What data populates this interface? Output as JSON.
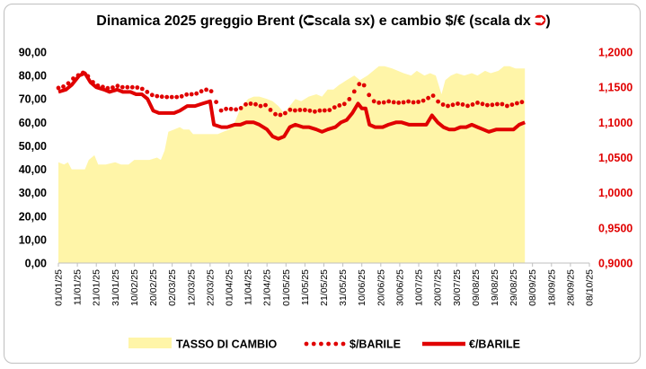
{
  "chart_data": {
    "type": "area+line",
    "title": "Dinamica 2025 greggio Brent (⮊scala sx) e cambio $/€ (scala dx ⮊)",
    "title_parts": {
      "before": "Dinamica 2025 greggio Brent (",
      "left_label": "scala sx) e cambio $/€ (scala dx ",
      "after": ")"
    },
    "colors": {
      "area": "#fff5a8",
      "line": "#e00000",
      "left_axis": "#000000",
      "right_axis": "#e00000"
    },
    "y_left": {
      "min": 0,
      "max": 90,
      "ticks": [
        "0,00",
        "10,00",
        "20,00",
        "30,00",
        "40,00",
        "50,00",
        "60,00",
        "70,00",
        "80,00",
        "90,00"
      ]
    },
    "y_right": {
      "min": 0.9,
      "max": 1.2,
      "ticks": [
        "0,9000",
        "0,9500",
        "1,0000",
        "1,0500",
        "1,1000",
        "1,1500",
        "1,2000"
      ]
    },
    "x_ticks": [
      "01/01/25",
      "11/01/25",
      "21/01/25",
      "31/01/25",
      "10/02/25",
      "20/02/25",
      "02/03/25",
      "12/03/25",
      "22/03/25",
      "01/04/25",
      "11/04/25",
      "21/04/25",
      "01/05/25",
      "11/05/25",
      "21/05/25",
      "31/05/25",
      "10/06/25",
      "20/06/25",
      "30/06/25",
      "10/07/25",
      "20/07/25",
      "30/07/25",
      "09/08/25",
      "19/08/25",
      "29/08/25",
      "08/09/25",
      "18/09/25",
      "28/09/25",
      "08/10/25"
    ],
    "series": [
      {
        "name": "TASSO DI CAMBIO",
        "kind": "area",
        "axis": "left",
        "points": [
          [
            0,
            43
          ],
          [
            3,
            42
          ],
          [
            5,
            43
          ],
          [
            7,
            40
          ],
          [
            10,
            40
          ],
          [
            14,
            40
          ],
          [
            16,
            44
          ],
          [
            19,
            46
          ],
          [
            21,
            42
          ],
          [
            25,
            42
          ],
          [
            30,
            43
          ],
          [
            33,
            42
          ],
          [
            37,
            42
          ],
          [
            40,
            44
          ],
          [
            44,
            44
          ],
          [
            48,
            44
          ],
          [
            52,
            45
          ],
          [
            54,
            44
          ],
          [
            56,
            48
          ],
          [
            58,
            56
          ],
          [
            61,
            57
          ],
          [
            64,
            58
          ],
          [
            66,
            57
          ],
          [
            69,
            57
          ],
          [
            71,
            55
          ],
          [
            74,
            55
          ],
          [
            78,
            55
          ],
          [
            81,
            55
          ],
          [
            84,
            55
          ],
          [
            87,
            56
          ],
          [
            90,
            57
          ],
          [
            93,
            60
          ],
          [
            96,
            66
          ],
          [
            98,
            68
          ],
          [
            100,
            70
          ],
          [
            103,
            71
          ],
          [
            106,
            71
          ],
          [
            110,
            70
          ],
          [
            113,
            69
          ],
          [
            116,
            67
          ],
          [
            119,
            64
          ],
          [
            122,
            67
          ],
          [
            125,
            70
          ],
          [
            128,
            69
          ],
          [
            132,
            71
          ],
          [
            136,
            72
          ],
          [
            139,
            71
          ],
          [
            142,
            74
          ],
          [
            145,
            74
          ],
          [
            148,
            76
          ],
          [
            152,
            78
          ],
          [
            156,
            80
          ],
          [
            159,
            78
          ],
          [
            163,
            80
          ],
          [
            166,
            82
          ],
          [
            169,
            84
          ],
          [
            172,
            84
          ],
          [
            176,
            83
          ],
          [
            179,
            82
          ],
          [
            182,
            81
          ],
          [
            186,
            80
          ],
          [
            189,
            82
          ],
          [
            193,
            80
          ],
          [
            196,
            81
          ],
          [
            199,
            80
          ],
          [
            202,
            72
          ],
          [
            204,
            78
          ],
          [
            207,
            80
          ],
          [
            210,
            81
          ],
          [
            214,
            80
          ],
          [
            218,
            81
          ],
          [
            221,
            80
          ],
          [
            225,
            82
          ],
          [
            228,
            81
          ],
          [
            232,
            82
          ],
          [
            235,
            84
          ],
          [
            238,
            84
          ],
          [
            241,
            83
          ],
          [
            244,
            83
          ],
          [
            246,
            83
          ]
        ]
      },
      {
        "name": "$/BARILE",
        "kind": "line-dotted",
        "axis": "right",
        "points": [
          [
            0,
            1.149
          ],
          [
            4,
            1.152
          ],
          [
            7,
            1.161
          ],
          [
            11,
            1.168
          ],
          [
            14,
            1.172
          ],
          [
            17,
            1.16
          ],
          [
            20,
            1.153
          ],
          [
            24,
            1.15
          ],
          [
            27,
            1.148
          ],
          [
            31,
            1.152
          ],
          [
            34,
            1.15
          ],
          [
            38,
            1.15
          ],
          [
            41,
            1.15
          ],
          [
            44,
            1.148
          ],
          [
            47,
            1.143
          ],
          [
            50,
            1.138
          ],
          [
            53,
            1.137
          ],
          [
            57,
            1.136
          ],
          [
            61,
            1.136
          ],
          [
            64,
            1.136
          ],
          [
            68,
            1.14
          ],
          [
            72,
            1.14
          ],
          [
            76,
            1.145
          ],
          [
            80,
            1.148
          ],
          [
            83,
            1.13
          ],
          [
            86,
            1.116
          ],
          [
            89,
            1.12
          ],
          [
            93,
            1.118
          ],
          [
            96,
            1.12
          ],
          [
            99,
            1.126
          ],
          [
            103,
            1.127
          ],
          [
            106,
            1.123
          ],
          [
            110,
            1.125
          ],
          [
            113,
            1.113
          ],
          [
            116,
            1.11
          ],
          [
            119,
            1.112
          ],
          [
            122,
            1.118
          ],
          [
            125,
            1.117
          ],
          [
            129,
            1.118
          ],
          [
            132,
            1.117
          ],
          [
            136,
            1.115
          ],
          [
            139,
            1.118
          ],
          [
            142,
            1.116
          ],
          [
            146,
            1.122
          ],
          [
            149,
            1.125
          ],
          [
            152,
            1.127
          ],
          [
            155,
            1.14
          ],
          [
            158,
            1.152
          ],
          [
            160,
            1.16
          ],
          [
            162,
            1.148
          ],
          [
            164,
            1.138
          ],
          [
            167,
            1.128
          ],
          [
            171,
            1.128
          ],
          [
            174,
            1.13
          ],
          [
            178,
            1.128
          ],
          [
            181,
            1.128
          ],
          [
            185,
            1.13
          ],
          [
            188,
            1.128
          ],
          [
            191,
            1.13
          ],
          [
            194,
            1.132
          ],
          [
            197,
            1.14
          ],
          [
            200,
            1.13
          ],
          [
            203,
            1.125
          ],
          [
            206,
            1.123
          ],
          [
            209,
            1.126
          ],
          [
            212,
            1.127
          ],
          [
            215,
            1.123
          ],
          [
            218,
            1.125
          ],
          [
            221,
            1.128
          ],
          [
            224,
            1.126
          ],
          [
            227,
            1.124
          ],
          [
            231,
            1.126
          ],
          [
            234,
            1.126
          ],
          [
            237,
            1.123
          ],
          [
            240,
            1.126
          ],
          [
            243,
            1.128
          ],
          [
            246,
            1.13
          ]
        ]
      },
      {
        "name": "€/BARILE",
        "kind": "line-solid",
        "axis": "left",
        "points": [
          [
            0,
            73
          ],
          [
            4,
            74
          ],
          [
            7,
            76
          ],
          [
            11,
            80
          ],
          [
            14,
            81
          ],
          [
            17,
            77
          ],
          [
            20,
            75
          ],
          [
            24,
            74
          ],
          [
            27,
            73
          ],
          [
            31,
            74
          ],
          [
            34,
            73
          ],
          [
            38,
            73
          ],
          [
            41,
            72
          ],
          [
            44,
            72
          ],
          [
            47,
            70
          ],
          [
            50,
            65
          ],
          [
            53,
            64
          ],
          [
            57,
            64
          ],
          [
            61,
            64
          ],
          [
            64,
            65
          ],
          [
            68,
            67
          ],
          [
            72,
            67
          ],
          [
            76,
            68
          ],
          [
            80,
            69
          ],
          [
            82,
            59
          ],
          [
            86,
            58
          ],
          [
            89,
            58
          ],
          [
            93,
            59
          ],
          [
            96,
            59
          ],
          [
            99,
            60
          ],
          [
            103,
            60
          ],
          [
            106,
            59
          ],
          [
            110,
            57
          ],
          [
            113,
            54
          ],
          [
            116,
            53
          ],
          [
            119,
            54
          ],
          [
            122,
            58
          ],
          [
            125,
            59
          ],
          [
            129,
            58
          ],
          [
            132,
            58
          ],
          [
            136,
            57
          ],
          [
            139,
            56
          ],
          [
            142,
            57
          ],
          [
            146,
            58
          ],
          [
            149,
            60
          ],
          [
            152,
            61
          ],
          [
            155,
            64
          ],
          [
            158,
            68
          ],
          [
            160,
            66
          ],
          [
            162,
            66
          ],
          [
            164,
            59
          ],
          [
            167,
            58
          ],
          [
            171,
            58
          ],
          [
            174,
            59
          ],
          [
            178,
            60
          ],
          [
            181,
            60
          ],
          [
            185,
            59
          ],
          [
            188,
            59
          ],
          [
            191,
            59
          ],
          [
            194,
            59
          ],
          [
            197,
            63
          ],
          [
            200,
            60
          ],
          [
            203,
            58
          ],
          [
            206,
            57
          ],
          [
            209,
            57
          ],
          [
            212,
            58
          ],
          [
            215,
            58
          ],
          [
            218,
            59
          ],
          [
            221,
            58
          ],
          [
            224,
            57
          ],
          [
            227,
            56
          ],
          [
            231,
            57
          ],
          [
            234,
            57
          ],
          [
            237,
            57
          ],
          [
            240,
            57
          ],
          [
            243,
            59
          ],
          [
            246,
            60
          ]
        ]
      }
    ],
    "legend": [
      "TASSO DI CAMBIO",
      "$/BARILE",
      "€/BARILE"
    ],
    "legend_position": "bottom"
  }
}
